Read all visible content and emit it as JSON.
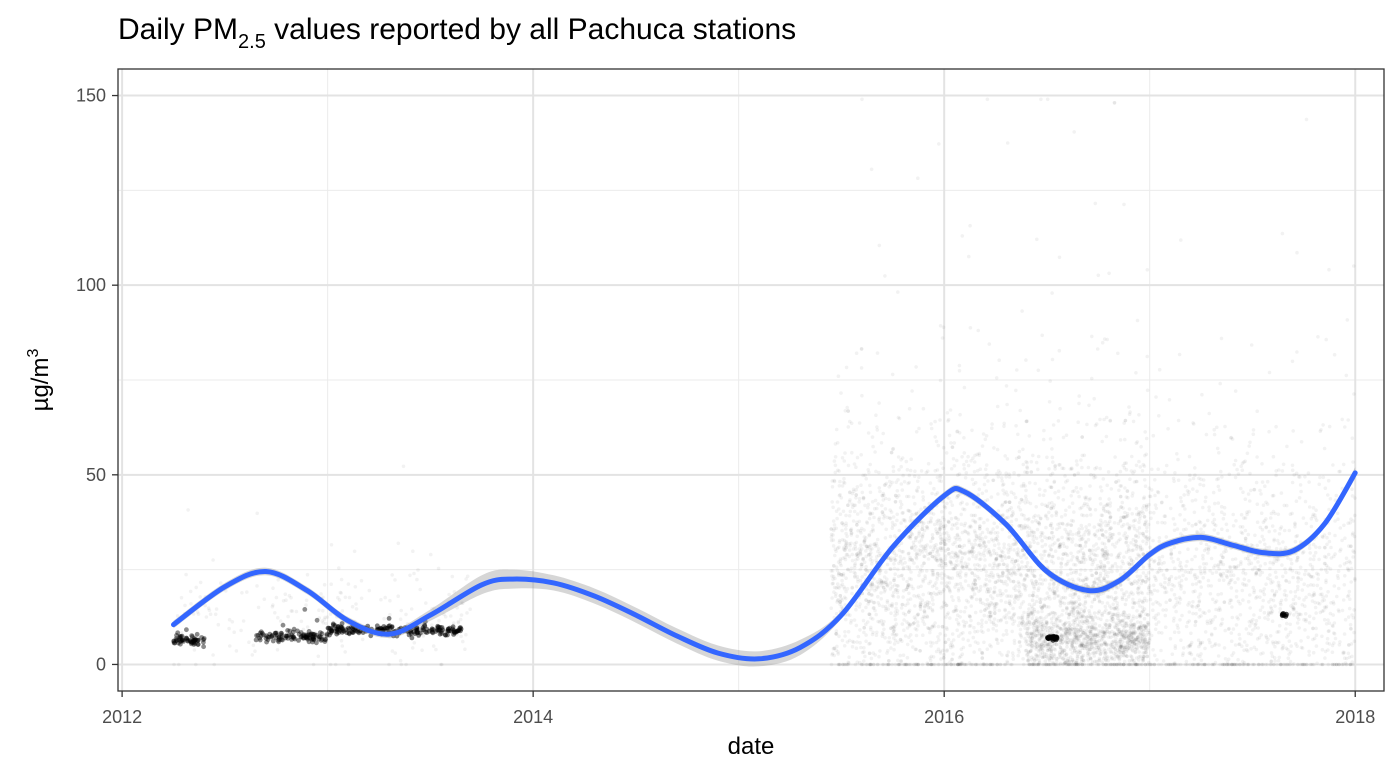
{
  "chart_data": {
    "type": "scatter",
    "title": {
      "prefix": "Daily PM",
      "subscript": "2.5",
      "suffix": " values reported by all Pachuca stations"
    },
    "xlabel": "date",
    "ylabel": {
      "base": "µg/m",
      "superscript": "3"
    },
    "xlim": [
      2011.98,
      2018.14
    ],
    "ylim": [
      -7,
      157
    ],
    "x_ticks": [
      {
        "value": 2012,
        "label": "2012"
      },
      {
        "value": 2014,
        "label": "2014"
      },
      {
        "value": 2016,
        "label": "2016"
      },
      {
        "value": 2018,
        "label": "2018"
      }
    ],
    "y_ticks": [
      {
        "value": 0,
        "label": "0"
      },
      {
        "value": 50,
        "label": "50"
      },
      {
        "value": 100,
        "label": "100"
      },
      {
        "value": 150,
        "label": "150"
      }
    ],
    "grid": true,
    "legend": "none",
    "colors": {
      "smooth_line": "#3366FF",
      "confidence_band": "#999999",
      "points": "#000000"
    },
    "series": [
      {
        "type": "line",
        "x": [
          2012.25,
          2012.5,
          2012.7,
          2012.9,
          2013.1,
          2013.3,
          2013.5,
          2013.75,
          2013.9,
          2014.1,
          2014.3,
          2014.5,
          2014.7,
          2014.9,
          2015.1,
          2015.3,
          2015.5,
          2015.75,
          2016.0,
          2016.1,
          2016.3,
          2016.5,
          2016.7,
          2016.85,
          2017.0,
          2017.1,
          2017.25,
          2017.4,
          2017.55,
          2017.7,
          2017.85,
          2018.0
        ],
        "y": [
          10.5,
          20.5,
          24.5,
          19.5,
          11.5,
          8,
          13,
          21,
          22.5,
          21.5,
          18,
          13,
          7.5,
          3,
          1.5,
          4.5,
          13,
          31,
          44.5,
          45.5,
          37,
          24.5,
          19.5,
          22,
          29,
          32,
          33.5,
          31.5,
          29.5,
          30,
          37,
          50.5
        ],
        "ci_low": [
          9.5,
          19.5,
          23.5,
          18.5,
          10.5,
          7,
          11.5,
          18.5,
          20,
          19.5,
          16,
          11,
          5.5,
          1,
          -0.5,
          2.5,
          12,
          30,
          43.5,
          44.5,
          36,
          23.5,
          18.5,
          21,
          28,
          31,
          32.5,
          30.5,
          28.5,
          29,
          36,
          49
        ],
        "ci_high": [
          11.5,
          21.5,
          25.5,
          20.5,
          12.5,
          9,
          14.5,
          23.5,
          25,
          23.5,
          20,
          15,
          9.5,
          5,
          3.5,
          6.5,
          14,
          32,
          45.5,
          46.5,
          38,
          25.5,
          20.5,
          23,
          30,
          33,
          34.5,
          32.5,
          30.5,
          31,
          38,
          52
        ]
      },
      {
        "type": "scatter",
        "clusters": [
          {
            "x_range": [
              2012.25,
              2012.4
            ],
            "y_mean": 6.5,
            "y_sd": 0.8,
            "n": 60,
            "opacity": 0.45,
            "size": 2.4
          },
          {
            "x_range": [
              2012.65,
              2013.0
            ],
            "y_mean": 7.2,
            "y_sd": 0.7,
            "n": 110,
            "opacity": 0.45,
            "size": 2.4
          },
          {
            "x_range": [
              2013.0,
              2013.65
            ],
            "y_mean": 9.0,
            "y_sd": 0.6,
            "n": 200,
            "opacity": 0.5,
            "size": 2.4
          },
          {
            "x_range": [
              2016.5,
              2016.55
            ],
            "y_mean": 7.0,
            "y_sd": 0.2,
            "n": 25,
            "opacity": 0.7,
            "size": 2.6
          },
          {
            "x_range": [
              2017.64,
              2017.67
            ],
            "y_mean": 13.0,
            "y_sd": 0.2,
            "n": 6,
            "opacity": 0.7,
            "size": 2.6
          },
          {
            "x_range": [
              2012.25,
              2013.7
            ],
            "y_mean": 12.0,
            "y_sd": 7.0,
            "n": 220,
            "opacity": 0.05,
            "size": 1.8
          },
          {
            "x_range": [
              2015.45,
              2017.0
            ],
            "y_mean": 24.0,
            "y_sd": 16.0,
            "n": 3500,
            "opacity": 0.05,
            "size": 1.8
          },
          {
            "x_range": [
              2017.0,
              2018.0
            ],
            "y_mean": 20.0,
            "y_sd": 17.0,
            "n": 1300,
            "opacity": 0.05,
            "size": 1.8
          },
          {
            "x_range": [
              2016.4,
              2017.0
            ],
            "y_mean": 6.0,
            "y_sd": 4.0,
            "n": 900,
            "opacity": 0.06,
            "size": 1.8
          }
        ]
      }
    ]
  }
}
